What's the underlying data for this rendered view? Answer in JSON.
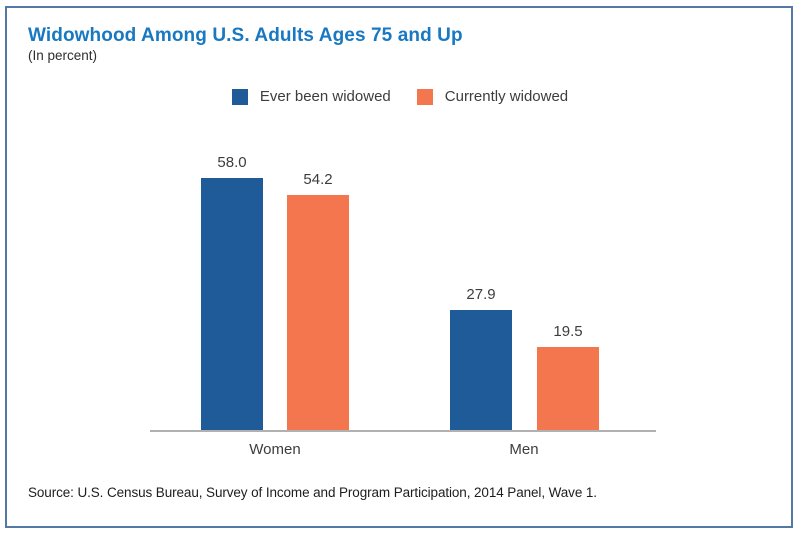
{
  "header": {
    "title": "Widowhood Among U.S. Adults Ages 75 and Up",
    "subtitle": "(In percent)"
  },
  "legend": [
    {
      "label": "Ever been widowed",
      "color": "#1f5b99"
    },
    {
      "label": "Currently widowed",
      "color": "#f4764e"
    }
  ],
  "source": "Source: U.S. Census Bureau, Survey of Income and Program Participation, 2014 Panel, Wave 1.",
  "colors": {
    "title_blue": "#1878c2",
    "frame_border": "#5579a5",
    "axis_gray": "#b1b1b1",
    "label_text": "#3d3d3d"
  },
  "chart_data": {
    "type": "bar",
    "title": "Widowhood Among U.S. Adults Ages 75 and Up",
    "subtitle": "(In percent)",
    "unit": "percent",
    "categories": [
      "Women",
      "Men"
    ],
    "series": [
      {
        "name": "Ever been widowed",
        "color": "#1f5b99",
        "values": [
          58.0,
          27.9
        ],
        "labels": [
          "58.0",
          "27.9"
        ]
      },
      {
        "name": "Currently widowed",
        "color": "#f4764e",
        "values": [
          54.2,
          19.5
        ],
        "labels": [
          "54.2",
          "19.5"
        ]
      }
    ],
    "ylim": [
      0,
      60
    ],
    "grid": false,
    "y_axis_shown": false,
    "legend_position": "top",
    "value_labels": true
  }
}
